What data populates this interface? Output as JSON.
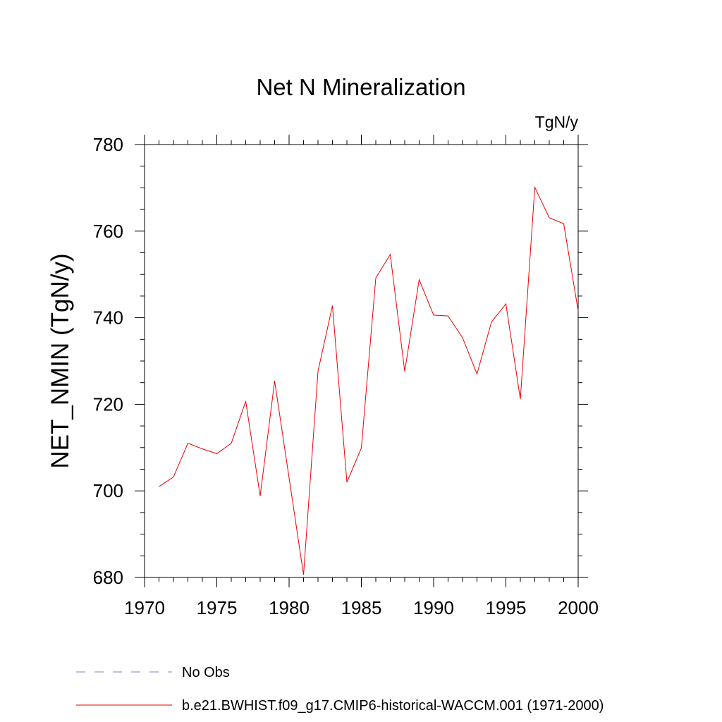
{
  "chart_data": {
    "type": "line",
    "title": "Net N Mineralization",
    "units_label": "TgN/y",
    "ylabel": "NET_NMIN  (TgN/y)",
    "xlabel": "",
    "xlim": [
      1970,
      2000
    ],
    "ylim": [
      680,
      780
    ],
    "x_ticks": [
      1970,
      1975,
      1980,
      1985,
      1990,
      1995,
      2000
    ],
    "y_ticks": [
      680,
      700,
      720,
      740,
      760,
      780
    ],
    "grid": false,
    "legend_position": "bottom-left",
    "series": [
      {
        "name": "No Obs",
        "color": "#8a7fc9",
        "dash": "dashed",
        "x": [],
        "values": []
      },
      {
        "name": "b.e21.BWHIST.f09_g17.CMIP6-historical-WACCM.001 (1971-2000)",
        "color": "#ee0000",
        "dash": "solid",
        "x": [
          1971,
          1972,
          1973,
          1974,
          1975,
          1976,
          1977,
          1978,
          1979,
          1980,
          1981,
          1982,
          1983,
          1984,
          1985,
          1986,
          1987,
          1988,
          1989,
          1990,
          1991,
          1992,
          1993,
          1994,
          1995,
          1996,
          1997,
          1998,
          1999,
          2000
        ],
        "values": [
          701.0,
          703.2,
          711.0,
          709.7,
          708.6,
          711.0,
          720.7,
          698.8,
          725.4,
          703.0,
          680.6,
          727.6,
          742.8,
          702.0,
          709.9,
          749.2,
          754.6,
          727.6,
          748.8,
          740.6,
          740.4,
          735.4,
          727.0,
          739.0,
          743.2,
          721.2,
          770.1,
          763.1,
          761.7,
          741.6
        ]
      }
    ]
  }
}
